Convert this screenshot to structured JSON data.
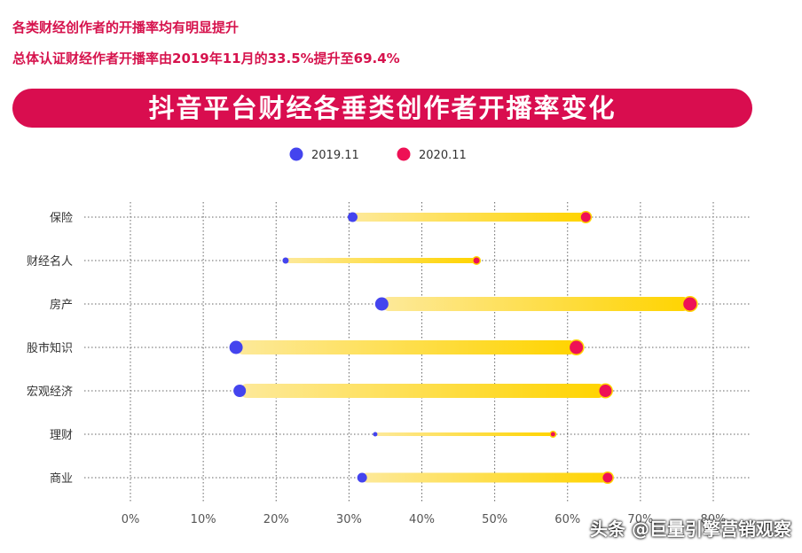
{
  "notes": {
    "line1": "各类财经创作者的开播率均有明显提升",
    "line2": "总体认证财经作者开播率由2019年11月的33.5%提升至69.4%"
  },
  "banner_title": "抖音平台财经各垂类创作者开播率变化",
  "watermark": "头条 @巨量引擎营销观察",
  "colors": {
    "accent": "#d90d4f",
    "series_2019": "#4444ee",
    "series_2020": "#ee1155",
    "bar_light": "#fde99a",
    "bar_dark": "#ffd400"
  },
  "chart_data": {
    "type": "dumbbell",
    "title": "抖音平台财经各垂类创作者开播率变化",
    "categories": [
      "保险",
      "财经名人",
      "房产",
      "股市知识",
      "宏观经济",
      "理财",
      "商业"
    ],
    "series": [
      {
        "name": "2019.11",
        "values": [
          0.305,
          0.213,
          0.345,
          0.145,
          0.15,
          0.336,
          0.318
        ]
      },
      {
        "name": "2020.11",
        "values": [
          0.625,
          0.475,
          0.768,
          0.612,
          0.652,
          0.58,
          0.655
        ]
      }
    ],
    "xlim": [
      0,
      0.8
    ],
    "xticks": [
      0,
      0.1,
      0.2,
      0.3,
      0.4,
      0.5,
      0.6,
      0.7,
      0.8
    ],
    "xtick_labels": [
      "0%",
      "10%",
      "20%",
      "30%",
      "40%",
      "50%",
      "60%",
      "70%",
      "80%"
    ],
    "legend_position": "top",
    "grid": true
  }
}
